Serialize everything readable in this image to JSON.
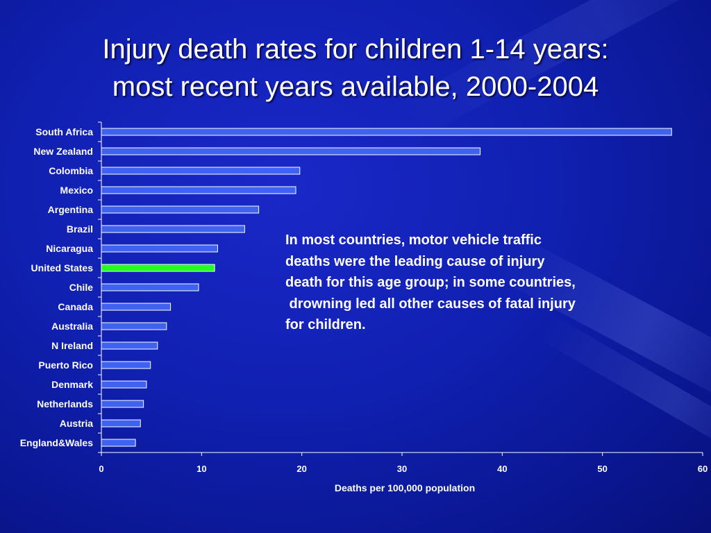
{
  "slide": {
    "title_lines": [
      "Injury death rates for children 1-14 years:",
      "most recent years available, 2000-2004"
    ],
    "note_lines": [
      "In most countries, motor vehicle traffic",
      "deaths were the leading cause of injury",
      "death for this age group; in some countries,",
      " drowning led all other causes of fatal injury",
      "for children."
    ]
  },
  "colors": {
    "background": "#1020b0",
    "bar": "#3f63f0",
    "bar_highlight": "#22ff22",
    "bar_outline": "#ffffff",
    "text": "#ffffff"
  },
  "chart_data": {
    "type": "bar",
    "orientation": "horizontal",
    "categories": [
      "South Africa",
      "New Zealand",
      "Colombia",
      "Mexico",
      "Argentina",
      "Brazil",
      "Nicaragua",
      "United States",
      "Chile",
      "Canada",
      "Australia",
      "N Ireland",
      "Puerto Rico",
      "Denmark",
      "Netherlands",
      "Austria",
      "England&Wales"
    ],
    "values": [
      56.9,
      37.8,
      19.8,
      19.4,
      15.7,
      14.3,
      11.6,
      11.3,
      9.7,
      6.9,
      6.5,
      5.6,
      4.9,
      4.5,
      4.2,
      3.9,
      3.4
    ],
    "highlight": "United States",
    "xlabel": "Deaths per 100,000 population",
    "ylabel": "",
    "xlim": [
      0,
      60
    ],
    "x_ticks": [
      "0",
      "10",
      "20",
      "30",
      "40",
      "50",
      "60"
    ],
    "grid": false,
    "legend": "none"
  }
}
